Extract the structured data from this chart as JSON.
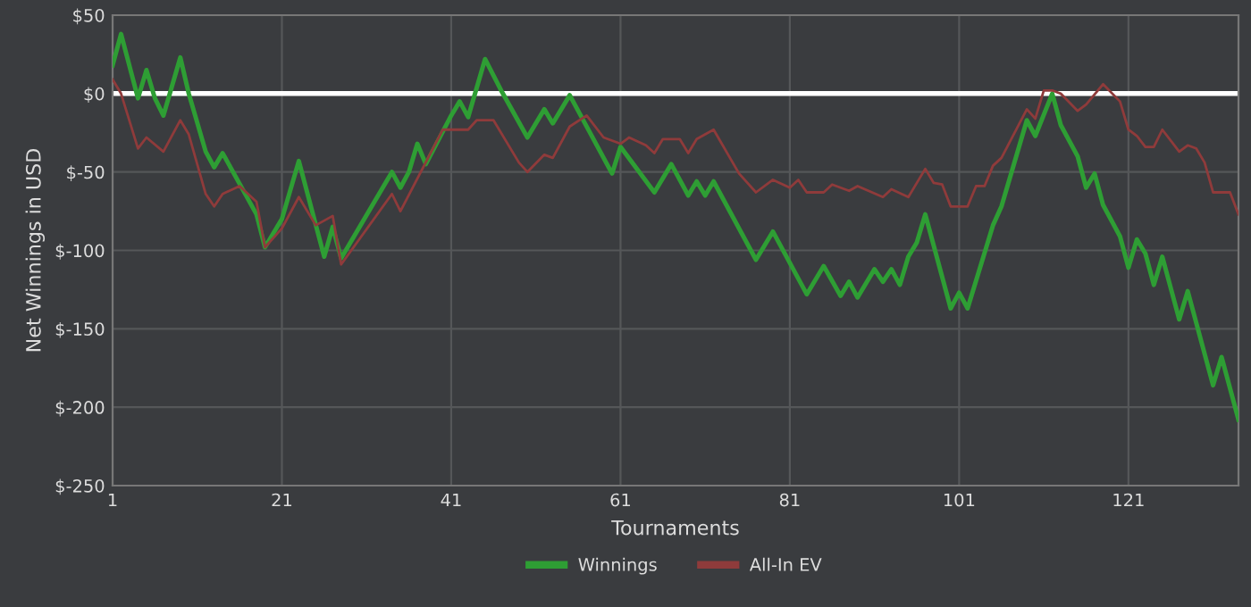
{
  "chart_data": {
    "type": "line",
    "xlabel": "Tournaments",
    "ylabel": "Net Winnings in USD",
    "xlim": [
      1,
      134
    ],
    "xticks": [
      1,
      21,
      41,
      61,
      81,
      101,
      121
    ],
    "ylim": [
      -250,
      50
    ],
    "yticks": [
      {
        "value": 50,
        "label": "$50"
      },
      {
        "value": 0,
        "label": "$0"
      },
      {
        "value": -50,
        "label": "$-50"
      },
      {
        "value": -100,
        "label": "$-100"
      },
      {
        "value": -150,
        "label": "$-150"
      },
      {
        "value": -200,
        "label": "$-200"
      },
      {
        "value": -250,
        "label": "$-250"
      }
    ],
    "grid": true,
    "legend": "bottom",
    "marker": "none",
    "line_style": "solid",
    "ref_lines": [
      {
        "axis": "y",
        "value": 0,
        "color": "#ffffff"
      }
    ],
    "series": [
      {
        "name": "Winnings",
        "color": "#2e9e34",
        "x": [
          1,
          2,
          4,
          5,
          6,
          7,
          9,
          10,
          12,
          13,
          14,
          18,
          19,
          21,
          23,
          26,
          27,
          28,
          34,
          35,
          36,
          37,
          38,
          41,
          42,
          43,
          45,
          47,
          50,
          52,
          53,
          55,
          60,
          61,
          65,
          67,
          69,
          70,
          71,
          72,
          77,
          79,
          83,
          85,
          87,
          88,
          89,
          91,
          92,
          93,
          94,
          95,
          96,
          97,
          100,
          101,
          102,
          105,
          106,
          109,
          110,
          112,
          113,
          115,
          116,
          117,
          118,
          120,
          121,
          122,
          123,
          124,
          125,
          127,
          128,
          131,
          132,
          134
        ],
        "values": [
          18,
          38,
          -3,
          15,
          -3,
          -14,
          23,
          0,
          -37,
          -47,
          -38,
          -77,
          -98,
          -80,
          -43,
          -104,
          -85,
          -105,
          -50,
          -60,
          -50,
          -32,
          -45,
          -14,
          -5,
          -15,
          22,
          1,
          -28,
          -10,
          -19,
          -1,
          -51,
          -34,
          -63,
          -45,
          -65,
          -56,
          -65,
          -56,
          -106,
          -88,
          -128,
          -110,
          -129,
          -120,
          -130,
          -112,
          -120,
          -112,
          -122,
          -104,
          -95,
          -77,
          -137,
          -127,
          -137,
          -84,
          -72,
          -17,
          -27,
          0,
          -20,
          -40,
          -60,
          -51,
          -71,
          -91,
          -111,
          -93,
          -102,
          -122,
          -104,
          -144,
          -126,
          -186,
          -168,
          -208
        ]
      },
      {
        "name": "All-In EV",
        "color": "#8f3b3b",
        "x": [
          1,
          2,
          4,
          5,
          7,
          9,
          10,
          12,
          13,
          14,
          16,
          18,
          19,
          21,
          23,
          25,
          27,
          28,
          34,
          35,
          40,
          43,
          44,
          46,
          49,
          50,
          52,
          53,
          55,
          57,
          59,
          61,
          62,
          64,
          65,
          66,
          68,
          69,
          70,
          72,
          75,
          77,
          79,
          81,
          82,
          83,
          85,
          86,
          88,
          89,
          92,
          93,
          95,
          97,
          98,
          99,
          100,
          102,
          103,
          104,
          105,
          106,
          109,
          110,
          111,
          112,
          113,
          115,
          116,
          118,
          120,
          121,
          122,
          123,
          124,
          125,
          127,
          128,
          129,
          130,
          131,
          133,
          134
        ],
        "values": [
          9,
          0,
          -35,
          -28,
          -37,
          -17,
          -26,
          -64,
          -72,
          -64,
          -59,
          -69,
          -98,
          -86,
          -66,
          -84,
          -78,
          -109,
          -64,
          -75,
          -23,
          -23,
          -17,
          -17,
          -44,
          -50,
          -39,
          -41,
          -21,
          -14,
          -28,
          -32,
          -28,
          -33,
          -38,
          -29,
          -29,
          -38,
          -29,
          -23,
          -51,
          -63,
          -55,
          -60,
          -55,
          -63,
          -63,
          -58,
          -62,
          -59,
          -66,
          -61,
          -66,
          -48,
          -57,
          -58,
          -72,
          -72,
          -59,
          -59,
          -46,
          -41,
          -10,
          -16,
          2,
          2,
          0,
          -11,
          -7,
          6,
          -5,
          -23,
          -27,
          -34,
          -34,
          -23,
          -37,
          -33,
          -35,
          -44,
          -63,
          -63,
          -77
        ]
      }
    ]
  }
}
